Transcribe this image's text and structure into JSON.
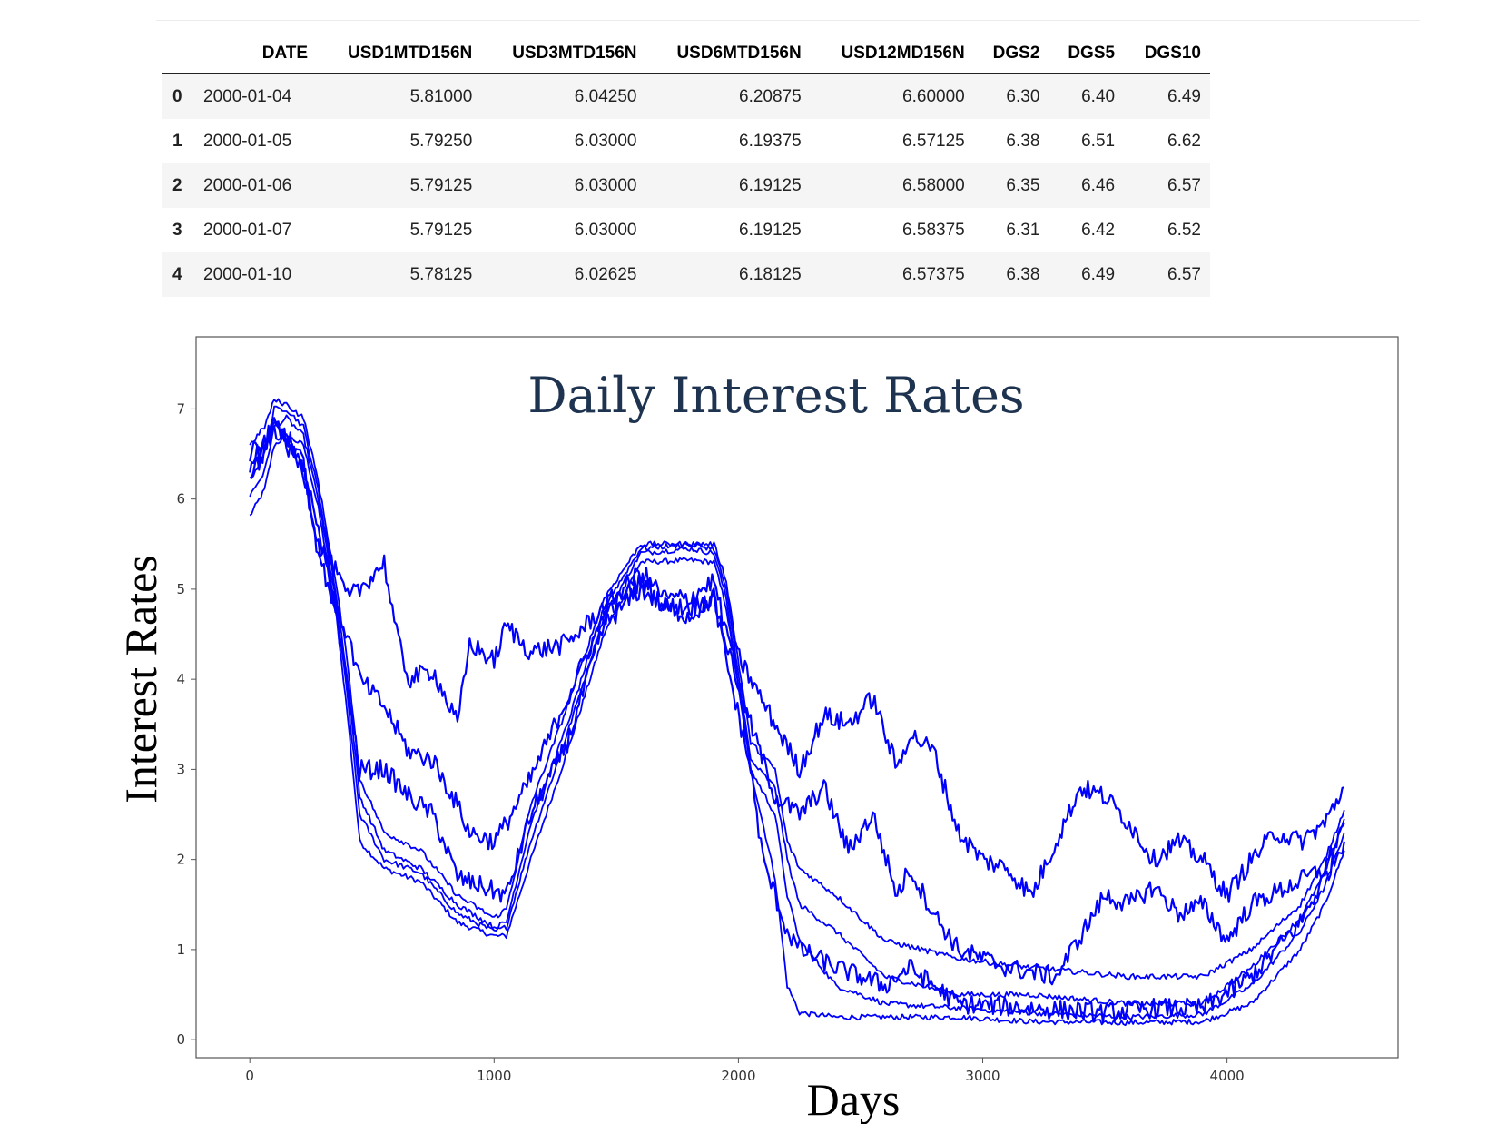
{
  "table": {
    "columns": [
      "",
      "DATE",
      "USD1MTD156N",
      "USD3MTD156N",
      "USD6MTD156N",
      "USD12MD156N",
      "DGS2",
      "DGS5",
      "DGS10"
    ],
    "rows": [
      [
        "0",
        "2000-01-04",
        "5.81000",
        "6.04250",
        "6.20875",
        "6.60000",
        "6.30",
        "6.40",
        "6.49"
      ],
      [
        "1",
        "2000-01-05",
        "5.79250",
        "6.03000",
        "6.19375",
        "6.57125",
        "6.38",
        "6.51",
        "6.62"
      ],
      [
        "2",
        "2000-01-06",
        "5.79125",
        "6.03000",
        "6.19125",
        "6.58000",
        "6.35",
        "6.46",
        "6.57"
      ],
      [
        "3",
        "2000-01-07",
        "5.79125",
        "6.03000",
        "6.19125",
        "6.58375",
        "6.31",
        "6.42",
        "6.52"
      ],
      [
        "4",
        "2000-01-10",
        "5.78125",
        "6.02625",
        "6.18125",
        "6.57375",
        "6.38",
        "6.49",
        "6.57"
      ]
    ]
  },
  "chart_data": {
    "type": "line",
    "title": "Daily Interest Rates",
    "xlabel": "Days",
    "ylabel": "Interest Rates",
    "xlim": [
      -220,
      4700
    ],
    "ylim": [
      -0.2,
      7.8
    ],
    "xticks": [
      0,
      1000,
      2000,
      3000,
      4000
    ],
    "yticks": [
      0,
      1,
      2,
      3,
      4,
      5,
      6,
      7
    ],
    "line_color": "#0000ff",
    "grid": false,
    "legend": false,
    "series": [
      {
        "points": [
          [
            0,
            5.81
          ],
          [
            60,
            6.1
          ],
          [
            100,
            6.6
          ],
          [
            150,
            6.7
          ],
          [
            220,
            6.6
          ],
          [
            280,
            5.9
          ],
          [
            350,
            4.8
          ],
          [
            400,
            3.6
          ],
          [
            450,
            2.2
          ],
          [
            550,
            1.9
          ],
          [
            700,
            1.75
          ],
          [
            850,
            1.3
          ],
          [
            1000,
            1.15
          ],
          [
            1050,
            1.15
          ],
          [
            1150,
            2.0
          ],
          [
            1300,
            3.2
          ],
          [
            1450,
            4.5
          ],
          [
            1600,
            5.3
          ],
          [
            1800,
            5.32
          ],
          [
            1900,
            5.3
          ],
          [
            1950,
            4.8
          ],
          [
            2050,
            3.0
          ],
          [
            2150,
            1.8
          ],
          [
            2200,
            0.6
          ],
          [
            2250,
            0.3
          ],
          [
            2400,
            0.25
          ],
          [
            2600,
            0.25
          ],
          [
            2900,
            0.25
          ],
          [
            3200,
            0.2
          ],
          [
            3600,
            0.19
          ],
          [
            3900,
            0.2
          ],
          [
            4100,
            0.4
          ],
          [
            4300,
            1.0
          ],
          [
            4400,
            1.5
          ],
          [
            4480,
            2.1
          ]
        ]
      },
      {
        "points": [
          [
            0,
            6.04
          ],
          [
            60,
            6.3
          ],
          [
            100,
            6.8
          ],
          [
            150,
            6.9
          ],
          [
            220,
            6.7
          ],
          [
            280,
            6.0
          ],
          [
            350,
            4.9
          ],
          [
            400,
            3.8
          ],
          [
            450,
            2.5
          ],
          [
            550,
            2.0
          ],
          [
            700,
            1.85
          ],
          [
            850,
            1.4
          ],
          [
            1000,
            1.2
          ],
          [
            1050,
            1.25
          ],
          [
            1150,
            2.2
          ],
          [
            1300,
            3.4
          ],
          [
            1450,
            4.7
          ],
          [
            1600,
            5.4
          ],
          [
            1800,
            5.45
          ],
          [
            1900,
            5.4
          ],
          [
            1950,
            4.9
          ],
          [
            2050,
            3.0
          ],
          [
            2150,
            2.5
          ],
          [
            2200,
            1.6
          ],
          [
            2250,
            1.1
          ],
          [
            2400,
            0.6
          ],
          [
            2600,
            0.4
          ],
          [
            2900,
            0.35
          ],
          [
            3200,
            0.3
          ],
          [
            3600,
            0.25
          ],
          [
            3900,
            0.28
          ],
          [
            4100,
            0.6
          ],
          [
            4300,
            1.2
          ],
          [
            4400,
            1.7
          ],
          [
            4480,
            2.3
          ]
        ]
      },
      {
        "points": [
          [
            0,
            6.21
          ],
          [
            60,
            6.5
          ],
          [
            100,
            7.0
          ],
          [
            150,
            7.0
          ],
          [
            220,
            6.8
          ],
          [
            280,
            6.1
          ],
          [
            350,
            5.0
          ],
          [
            400,
            4.0
          ],
          [
            450,
            2.7
          ],
          [
            550,
            2.1
          ],
          [
            700,
            1.9
          ],
          [
            850,
            1.5
          ],
          [
            1000,
            1.25
          ],
          [
            1050,
            1.3
          ],
          [
            1150,
            2.4
          ],
          [
            1300,
            3.5
          ],
          [
            1450,
            4.8
          ],
          [
            1600,
            5.45
          ],
          [
            1800,
            5.5
          ],
          [
            1900,
            5.45
          ],
          [
            1950,
            5.0
          ],
          [
            2050,
            3.1
          ],
          [
            2150,
            2.8
          ],
          [
            2200,
            2.0
          ],
          [
            2250,
            1.5
          ],
          [
            2400,
            1.2
          ],
          [
            2600,
            0.7
          ],
          [
            2900,
            0.5
          ],
          [
            3200,
            0.5
          ],
          [
            3600,
            0.4
          ],
          [
            3900,
            0.4
          ],
          [
            4100,
            0.8
          ],
          [
            4300,
            1.35
          ],
          [
            4400,
            1.85
          ],
          [
            4480,
            2.45
          ]
        ]
      },
      {
        "points": [
          [
            0,
            6.6
          ],
          [
            60,
            6.8
          ],
          [
            100,
            7.1
          ],
          [
            150,
            7.05
          ],
          [
            220,
            6.9
          ],
          [
            280,
            6.2
          ],
          [
            350,
            5.1
          ],
          [
            400,
            4.2
          ],
          [
            450,
            2.9
          ],
          [
            550,
            2.3
          ],
          [
            700,
            2.1
          ],
          [
            850,
            1.6
          ],
          [
            1000,
            1.35
          ],
          [
            1050,
            1.45
          ],
          [
            1150,
            2.6
          ],
          [
            1300,
            3.7
          ],
          [
            1450,
            4.9
          ],
          [
            1600,
            5.5
          ],
          [
            1800,
            5.5
          ],
          [
            1900,
            5.5
          ],
          [
            1950,
            5.1
          ],
          [
            2050,
            3.3
          ],
          [
            2150,
            3.0
          ],
          [
            2200,
            2.2
          ],
          [
            2250,
            1.9
          ],
          [
            2400,
            1.6
          ],
          [
            2600,
            1.1
          ],
          [
            2900,
            0.9
          ],
          [
            3200,
            0.8
          ],
          [
            3600,
            0.7
          ],
          [
            3900,
            0.7
          ],
          [
            4100,
            1.0
          ],
          [
            4300,
            1.5
          ],
          [
            4400,
            2.0
          ],
          [
            4480,
            2.55
          ]
        ]
      },
      {
        "points": [
          [
            0,
            6.3
          ],
          [
            60,
            6.5
          ],
          [
            100,
            6.8
          ],
          [
            150,
            6.7
          ],
          [
            220,
            6.4
          ],
          [
            280,
            5.6
          ],
          [
            350,
            4.8
          ],
          [
            400,
            3.9
          ],
          [
            450,
            3.0
          ],
          [
            550,
            3.0
          ],
          [
            650,
            2.7
          ],
          [
            750,
            2.5
          ],
          [
            850,
            1.8
          ],
          [
            950,
            1.7
          ],
          [
            1050,
            1.6
          ],
          [
            1150,
            2.5
          ],
          [
            1300,
            3.3
          ],
          [
            1450,
            4.6
          ],
          [
            1600,
            5.0
          ],
          [
            1700,
            4.8
          ],
          [
            1800,
            4.7
          ],
          [
            1900,
            4.9
          ],
          [
            1950,
            4.2
          ],
          [
            2050,
            3.0
          ],
          [
            2100,
            2.0
          ],
          [
            2150,
            1.6
          ],
          [
            2200,
            1.2
          ],
          [
            2250,
            1.0
          ],
          [
            2400,
            0.8
          ],
          [
            2600,
            0.6
          ],
          [
            2700,
            0.8
          ],
          [
            2900,
            0.4
          ],
          [
            3200,
            0.35
          ],
          [
            3500,
            0.3
          ],
          [
            3700,
            0.35
          ],
          [
            3900,
            0.35
          ],
          [
            4100,
            0.7
          ],
          [
            4300,
            1.3
          ],
          [
            4400,
            1.8
          ],
          [
            4480,
            2.2
          ]
        ]
      },
      {
        "points": [
          [
            0,
            6.4
          ],
          [
            60,
            6.6
          ],
          [
            100,
            6.9
          ],
          [
            150,
            6.7
          ],
          [
            220,
            6.4
          ],
          [
            280,
            5.4
          ],
          [
            350,
            4.8
          ],
          [
            400,
            4.5
          ],
          [
            450,
            4.0
          ],
          [
            550,
            3.7
          ],
          [
            650,
            3.2
          ],
          [
            750,
            3.1
          ],
          [
            850,
            2.6
          ],
          [
            900,
            2.3
          ],
          [
            1000,
            2.2
          ],
          [
            1050,
            2.4
          ],
          [
            1150,
            2.9
          ],
          [
            1300,
            3.8
          ],
          [
            1450,
            4.7
          ],
          [
            1600,
            5.1
          ],
          [
            1700,
            4.8
          ],
          [
            1800,
            4.8
          ],
          [
            1900,
            4.9
          ],
          [
            1950,
            4.4
          ],
          [
            2050,
            3.5
          ],
          [
            2150,
            2.7
          ],
          [
            2250,
            2.5
          ],
          [
            2350,
            2.8
          ],
          [
            2450,
            2.1
          ],
          [
            2550,
            2.5
          ],
          [
            2650,
            1.6
          ],
          [
            2700,
            1.9
          ],
          [
            2800,
            1.4
          ],
          [
            2900,
            1.0
          ],
          [
            3100,
            0.8
          ],
          [
            3300,
            0.7
          ],
          [
            3500,
            1.6
          ],
          [
            3600,
            1.5
          ],
          [
            3700,
            1.7
          ],
          [
            3800,
            1.4
          ],
          [
            3900,
            1.5
          ],
          [
            4000,
            1.1
          ],
          [
            4100,
            1.5
          ],
          [
            4250,
            1.7
          ],
          [
            4400,
            1.9
          ],
          [
            4480,
            2.4
          ]
        ]
      },
      {
        "points": [
          [
            0,
            6.49
          ],
          [
            60,
            6.6
          ],
          [
            100,
            6.8
          ],
          [
            150,
            6.6
          ],
          [
            220,
            6.3
          ],
          [
            280,
            5.5
          ],
          [
            350,
            5.2
          ],
          [
            400,
            4.9
          ],
          [
            450,
            5.0
          ],
          [
            550,
            5.3
          ],
          [
            600,
            4.5
          ],
          [
            650,
            4.0
          ],
          [
            750,
            4.1
          ],
          [
            850,
            3.5
          ],
          [
            900,
            4.4
          ],
          [
            950,
            4.3
          ],
          [
            1000,
            4.2
          ],
          [
            1050,
            4.6
          ],
          [
            1150,
            4.3
          ],
          [
            1300,
            4.4
          ],
          [
            1450,
            4.8
          ],
          [
            1600,
            5.2
          ],
          [
            1700,
            4.9
          ],
          [
            1800,
            4.9
          ],
          [
            1900,
            5.1
          ],
          [
            1950,
            4.5
          ],
          [
            2050,
            4.0
          ],
          [
            2150,
            3.5
          ],
          [
            2250,
            3.0
          ],
          [
            2350,
            3.6
          ],
          [
            2450,
            3.5
          ],
          [
            2550,
            3.8
          ],
          [
            2650,
            3.0
          ],
          [
            2700,
            3.4
          ],
          [
            2800,
            3.2
          ],
          [
            2900,
            2.3
          ],
          [
            3000,
            2.0
          ],
          [
            3100,
            1.9
          ],
          [
            3200,
            1.6
          ],
          [
            3300,
            2.2
          ],
          [
            3400,
            2.8
          ],
          [
            3500,
            2.7
          ],
          [
            3600,
            2.4
          ],
          [
            3700,
            2.0
          ],
          [
            3800,
            2.2
          ],
          [
            3900,
            2.0
          ],
          [
            4000,
            1.6
          ],
          [
            4100,
            2.0
          ],
          [
            4200,
            2.3
          ],
          [
            4300,
            2.2
          ],
          [
            4400,
            2.4
          ],
          [
            4480,
            2.8
          ]
        ]
      }
    ]
  }
}
